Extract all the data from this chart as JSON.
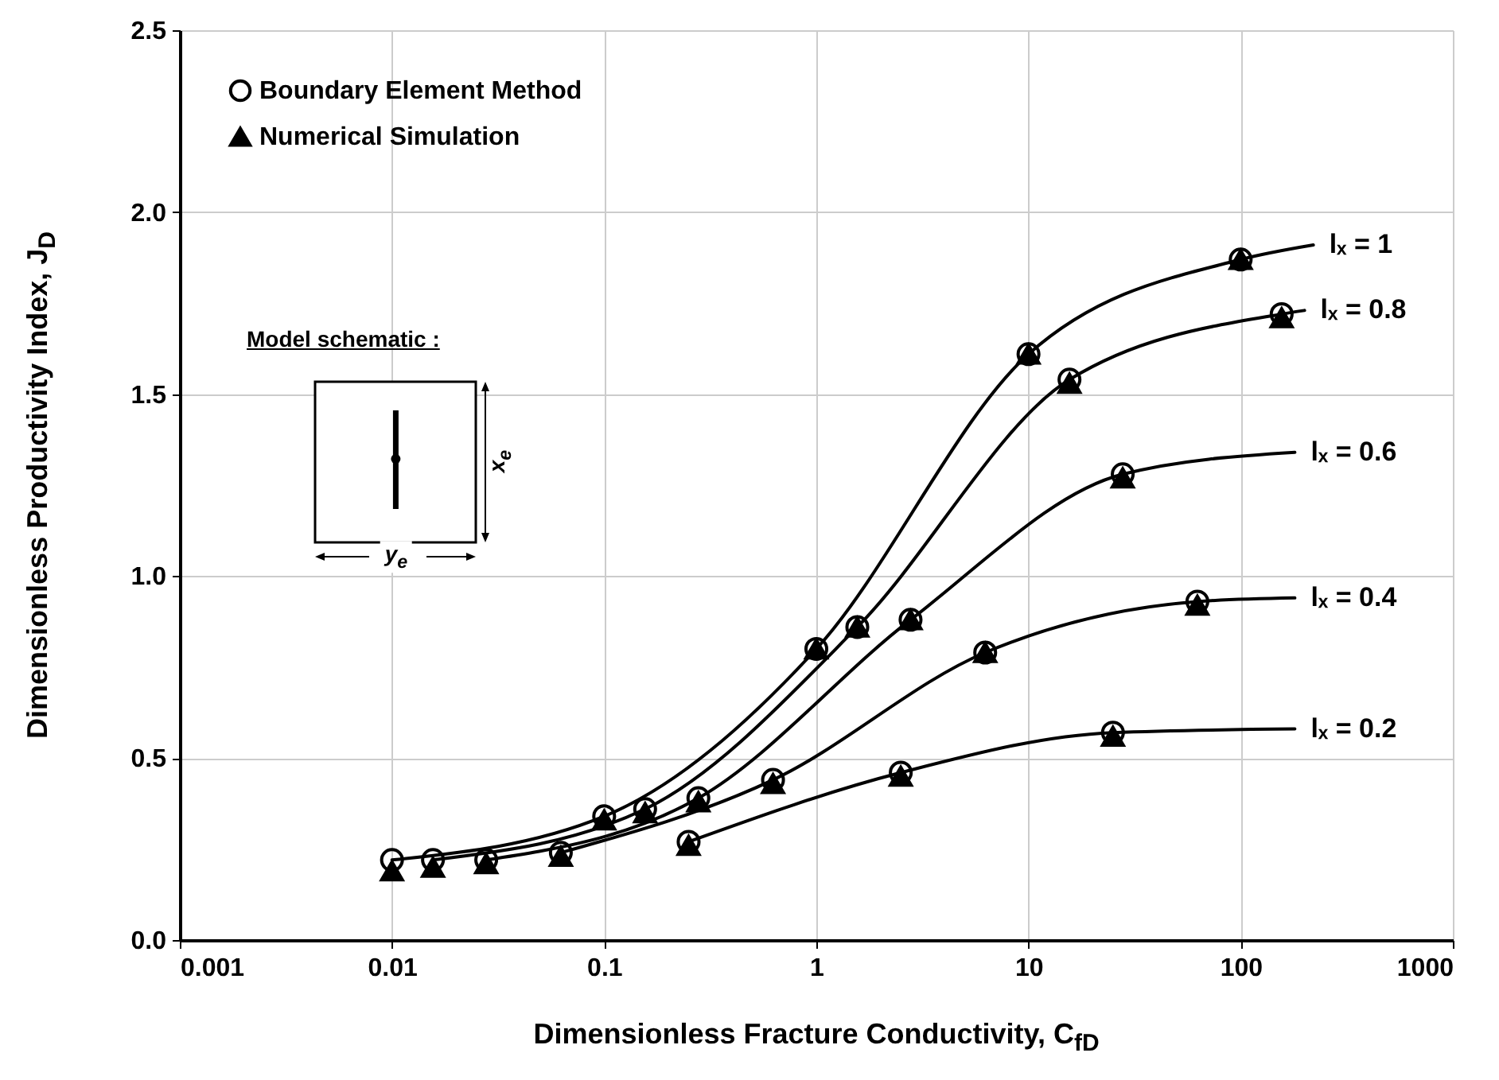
{
  "chart_data": {
    "type": "line",
    "xlabel": "Dimensionless Fracture Conductivity, C$_{fD}$",
    "ylabel": "Dimensionless Productivity Index, J$_{D}$",
    "annotations": [
      "Model schematic :",
      "x$_{e}$",
      "y$_{e}$"
    ],
    "series": [
      {
        "name": "lₓ = 1",
        "color": "#000000",
        "x": [
          0.01,
          0.1,
          1,
          10,
          100,
          220
        ],
        "values": [
          0.22,
          0.34,
          0.8,
          1.61,
          1.87,
          1.91
        ]
      },
      {
        "name": "lₓ = 0.8",
        "color": "#000000",
        "x": [
          0.0156,
          0.156,
          1.56,
          15.6,
          156,
          200
        ],
        "values": [
          0.22,
          0.36,
          0.86,
          1.54,
          1.72,
          1.73
        ]
      },
      {
        "name": "lₓ = 0.6",
        "color": "#000000",
        "x": [
          0.0278,
          0.278,
          2.78,
          27.8,
          180
        ],
        "values": [
          0.22,
          0.39,
          0.88,
          1.28,
          1.34
        ]
      },
      {
        "name": "lₓ = 0.4",
        "color": "#000000",
        "x": [
          0.0625,
          0.625,
          6.25,
          62.5,
          180
        ],
        "values": [
          0.24,
          0.44,
          0.79,
          0.93,
          0.94
        ]
      },
      {
        "name": "lₓ = 0.2",
        "color": "#000000",
        "x": [
          0.25,
          2.5,
          25,
          180
        ],
        "values": [
          0.27,
          0.46,
          0.57,
          0.58
        ]
      },
      {
        "name": "Boundary Element Method",
        "type": "scatter",
        "marker": "circle",
        "color": "#000000",
        "x": [
          0.01,
          0.1,
          1,
          10,
          100,
          0.0156,
          0.156,
          1.56,
          15.6,
          156,
          0.0278,
          0.278,
          2.78,
          27.8,
          0.0625,
          0.625,
          6.25,
          62.5,
          0.25,
          2.5,
          25
        ],
        "values": [
          0.22,
          0.34,
          0.8,
          1.61,
          1.87,
          0.22,
          0.36,
          0.86,
          1.54,
          1.72,
          0.22,
          0.39,
          0.88,
          1.28,
          0.24,
          0.44,
          0.79,
          0.93,
          0.27,
          0.46,
          0.57
        ]
      },
      {
        "name": "Numerical Simulation",
        "type": "scatter",
        "marker": "triangle",
        "color": "#000000",
        "x": [
          0.01,
          0.1,
          1,
          10,
          100,
          0.0156,
          0.156,
          1.56,
          15.6,
          156,
          0.0278,
          0.278,
          2.78,
          27.8,
          0.0625,
          0.625,
          6.25,
          62.5,
          0.25,
          2.5,
          25
        ],
        "values": [
          0.19,
          0.33,
          0.8,
          1.61,
          1.87,
          0.2,
          0.35,
          0.86,
          1.53,
          1.71,
          0.21,
          0.38,
          0.88,
          1.27,
          0.23,
          0.43,
          0.79,
          0.92,
          0.26,
          0.45,
          0.56
        ]
      }
    ],
    "xlim": [
      0.001,
      1000
    ],
    "xticks": [
      0.001,
      0.01,
      0.1,
      1,
      10,
      100,
      1000
    ],
    "ylim": [
      0,
      2.5
    ],
    "yticks": [
      {
        "value": 0,
        "label": "0.0"
      },
      {
        "value": 0.5,
        "label": "0.5"
      },
      {
        "value": 1,
        "label": "1.0"
      },
      {
        "value": 1.5,
        "label": "1.5"
      },
      {
        "value": 2,
        "label": "2.0"
      },
      {
        "value": 2.5,
        "label": "2.5"
      }
    ],
    "log": "x",
    "grid": true,
    "legend": "top left"
  }
}
